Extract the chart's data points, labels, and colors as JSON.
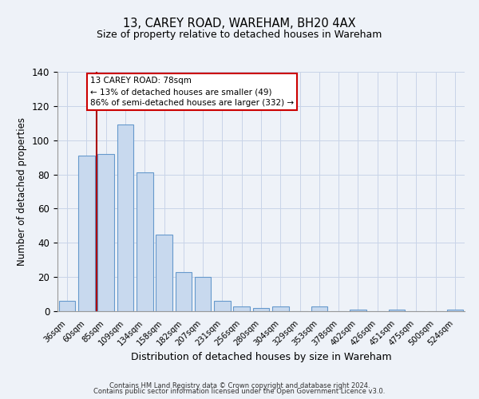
{
  "title": "13, CAREY ROAD, WAREHAM, BH20 4AX",
  "subtitle": "Size of property relative to detached houses in Wareham",
  "xlabel": "Distribution of detached houses by size in Wareham",
  "ylabel": "Number of detached properties",
  "bar_labels": [
    "36sqm",
    "60sqm",
    "85sqm",
    "109sqm",
    "134sqm",
    "158sqm",
    "182sqm",
    "207sqm",
    "231sqm",
    "256sqm",
    "280sqm",
    "304sqm",
    "329sqm",
    "353sqm",
    "378sqm",
    "402sqm",
    "426sqm",
    "451sqm",
    "475sqm",
    "500sqm",
    "524sqm"
  ],
  "bar_values": [
    6,
    91,
    92,
    109,
    81,
    45,
    23,
    20,
    6,
    3,
    2,
    3,
    0,
    3,
    0,
    1,
    0,
    1,
    0,
    0,
    1
  ],
  "bar_color": "#c8d9ee",
  "bar_edge_color": "#6699cc",
  "vline_x": 1.5,
  "vline_color": "#aa0000",
  "ylim": [
    0,
    140
  ],
  "yticks": [
    0,
    20,
    40,
    60,
    80,
    100,
    120,
    140
  ],
  "annotation_title": "13 CAREY ROAD: 78sqm",
  "annotation_line1": "← 13% of detached houses are smaller (49)",
  "annotation_line2": "86% of semi-detached houses are larger (332) →",
  "footer_line1": "Contains HM Land Registry data © Crown copyright and database right 2024.",
  "footer_line2": "Contains public sector information licensed under the Open Government Licence v3.0.",
  "background_color": "#eef2f8",
  "plot_background": "#eef2f8",
  "grid_color": "#c8d4e8"
}
